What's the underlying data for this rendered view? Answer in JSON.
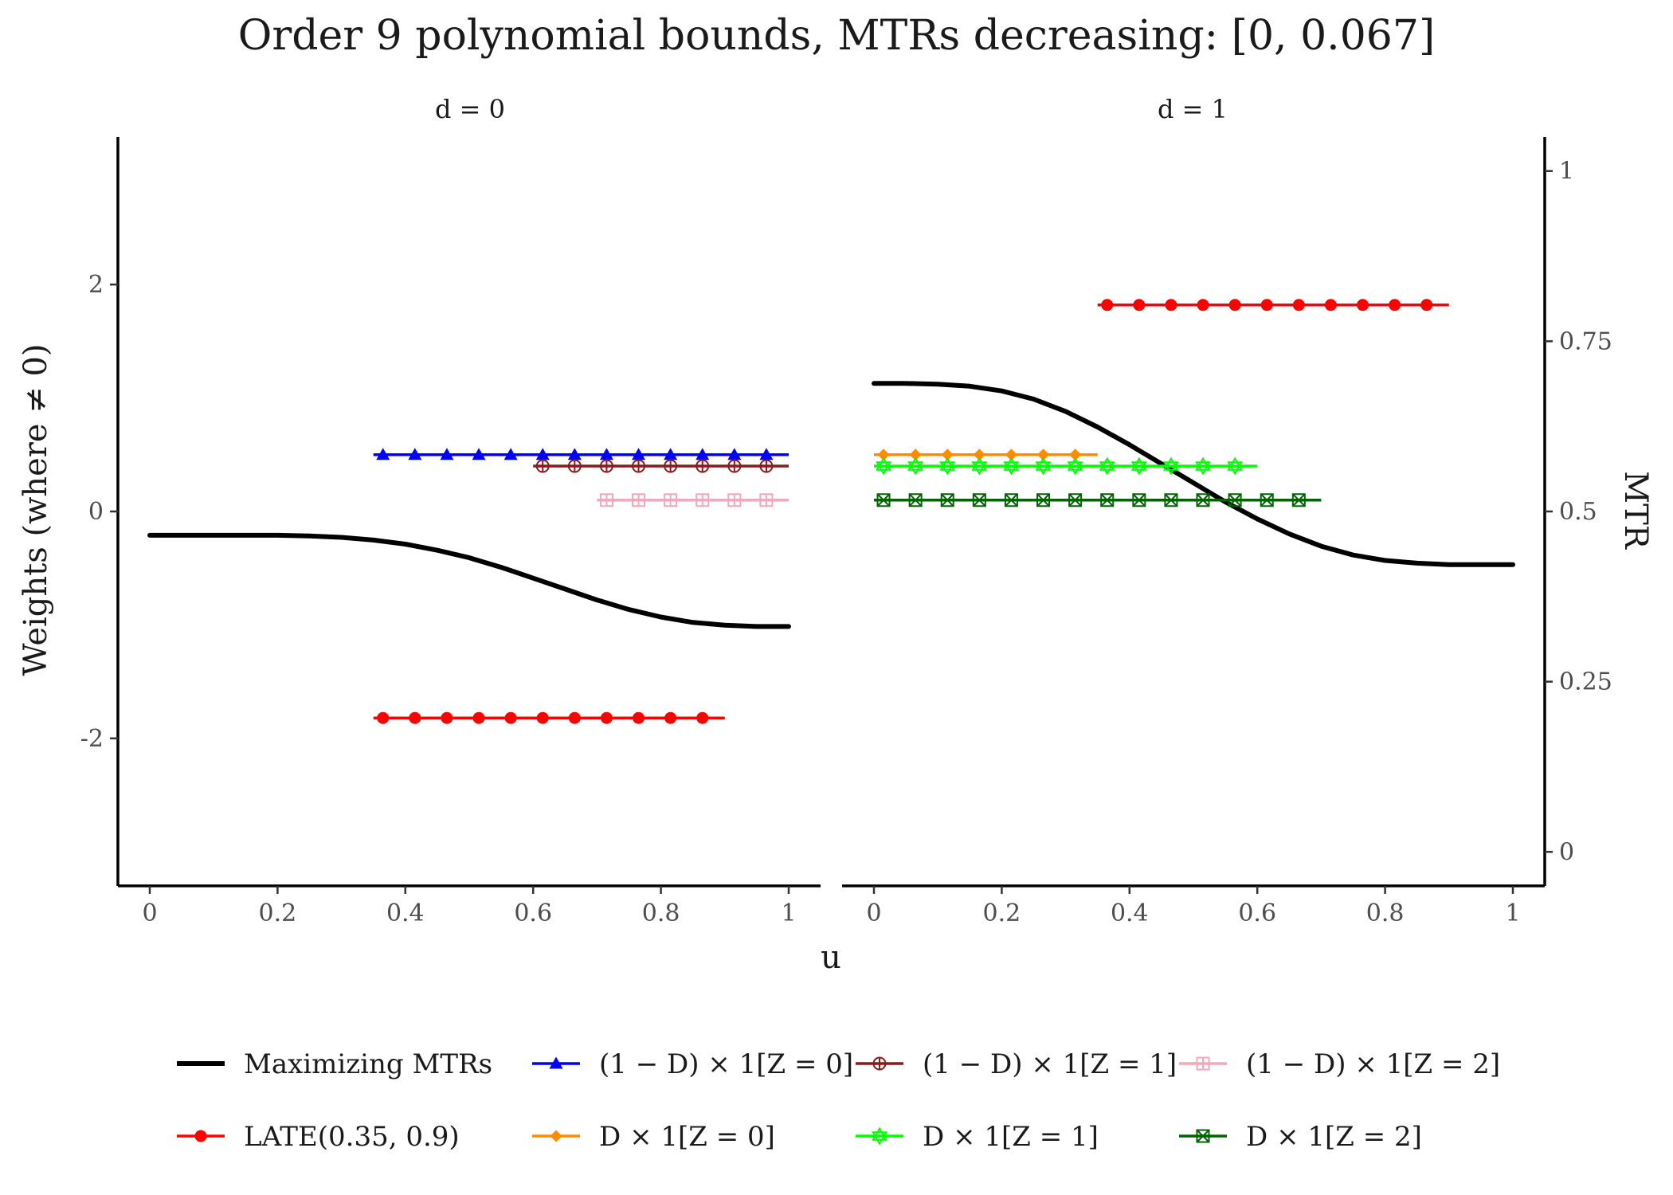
{
  "chart_data": {
    "type": "line",
    "title": "Order 9 polynomial bounds, MTRs decreasing: [0, 0.067]",
    "xlabel": "u",
    "ylabel_left": "Weights (where ≠ 0)",
    "ylabel_right": "MTR",
    "panels": [
      {
        "label": "d = 0",
        "xlim": [
          0,
          1
        ],
        "xticks": [
          "0",
          "0.2",
          "0.4",
          "0.6",
          "0.8",
          "1"
        ]
      },
      {
        "label": "d = 1",
        "xlim": [
          0,
          1
        ],
        "xticks": [
          "0",
          "0.2",
          "0.4",
          "0.6",
          "0.8",
          "1"
        ]
      }
    ],
    "left_axis": {
      "ylim": [
        -3.3,
        3.3
      ],
      "ticks": [
        -2,
        0,
        2
      ],
      "tick_labels": [
        "-2",
        "0",
        "2"
      ]
    },
    "right_axis": {
      "ylim": [
        -0.05,
        1.05
      ],
      "ticks": [
        0,
        0.25,
        0.5,
        0.75,
        1
      ],
      "tick_labels": [
        "0",
        "0.25",
        "0.5",
        "0.75",
        "1"
      ]
    },
    "mtr_curves": {
      "name": "Maximizing MTRs",
      "color": "#000000",
      "d0": {
        "u": [
          0,
          0.05,
          0.1,
          0.15,
          0.2,
          0.25,
          0.3,
          0.35,
          0.4,
          0.45,
          0.5,
          0.55,
          0.6,
          0.65,
          0.7,
          0.75,
          0.8,
          0.85,
          0.9,
          0.95,
          1.0
        ],
        "mtr": [
          0.465,
          0.465,
          0.465,
          0.465,
          0.465,
          0.464,
          0.462,
          0.458,
          0.452,
          0.443,
          0.432,
          0.418,
          0.402,
          0.386,
          0.37,
          0.356,
          0.345,
          0.337,
          0.333,
          0.331,
          0.331
        ]
      },
      "d1": {
        "u": [
          0,
          0.05,
          0.1,
          0.15,
          0.2,
          0.25,
          0.3,
          0.35,
          0.4,
          0.45,
          0.5,
          0.55,
          0.6,
          0.65,
          0.7,
          0.75,
          0.8,
          0.85,
          0.9,
          0.95,
          1.0
        ],
        "mtr": [
          0.688,
          0.688,
          0.687,
          0.684,
          0.677,
          0.665,
          0.647,
          0.624,
          0.598,
          0.57,
          0.542,
          0.514,
          0.489,
          0.467,
          0.449,
          0.436,
          0.428,
          0.424,
          0.422,
          0.422,
          0.422
        ]
      }
    },
    "series": [
      {
        "name": "(1 − D) × 1[Z = 0]",
        "panel": "d = 0",
        "weight": 0.5,
        "u_range": [
          0.35,
          1.0
        ],
        "color": "#0000ff",
        "marker": "triangle"
      },
      {
        "name": "(1 − D) × 1[Z = 1]",
        "panel": "d = 0",
        "weight": 0.4,
        "u_range": [
          0.6,
          1.0
        ],
        "color": "#8b1a1a",
        "marker": "circle-plus"
      },
      {
        "name": "(1 − D) × 1[Z = 2]",
        "panel": "d = 0",
        "weight": 0.1,
        "u_range": [
          0.7,
          1.0
        ],
        "color": "#f4a7b9",
        "marker": "square-plus"
      },
      {
        "name": "LATE(0.35, 0.9)",
        "panel": "d = 0",
        "weight": -1.82,
        "u_range": [
          0.35,
          0.9
        ],
        "color": "#ff0000",
        "marker": "dot"
      },
      {
        "name": "LATE(0.35, 0.9)",
        "panel": "d = 1",
        "weight": 1.82,
        "u_range": [
          0.35,
          0.9
        ],
        "color": "#ff0000",
        "marker": "dot"
      },
      {
        "name": "D × 1[Z = 0]",
        "panel": "d = 1",
        "weight": 0.5,
        "u_range": [
          0.0,
          0.35
        ],
        "color": "#ff8c00",
        "marker": "diamond"
      },
      {
        "name": "D × 1[Z = 1]",
        "panel": "d = 1",
        "weight": 0.4,
        "u_range": [
          0.0,
          0.6
        ],
        "color": "#00ff00",
        "marker": "star6"
      },
      {
        "name": "D × 1[Z = 2]",
        "panel": "d = 1",
        "weight": 0.1,
        "u_range": [
          0.0,
          0.7
        ],
        "color": "#006400",
        "marker": "square-x"
      }
    ],
    "legend": {
      "position": "bottom",
      "entries": [
        {
          "label": "Maximizing MTRs",
          "color": "#000000",
          "marker": "none"
        },
        {
          "label": "(1 − D) × 1[Z = 0]",
          "color": "#0000ff",
          "marker": "triangle"
        },
        {
          "label": "(1 − D) × 1[Z = 1]",
          "color": "#8b1a1a",
          "marker": "circle-plus"
        },
        {
          "label": "(1 − D) × 1[Z = 2]",
          "color": "#f4a7b9",
          "marker": "square-plus"
        },
        {
          "label": "LATE(0.35, 0.9)",
          "color": "#ff0000",
          "marker": "dot"
        },
        {
          "label": "D × 1[Z = 0]",
          "color": "#ff8c00",
          "marker": "diamond"
        },
        {
          "label": "D × 1[Z = 1]",
          "color": "#00ff00",
          "marker": "star6"
        },
        {
          "label": "D × 1[Z = 2]",
          "color": "#006400",
          "marker": "square-x"
        }
      ]
    },
    "grid": false
  }
}
